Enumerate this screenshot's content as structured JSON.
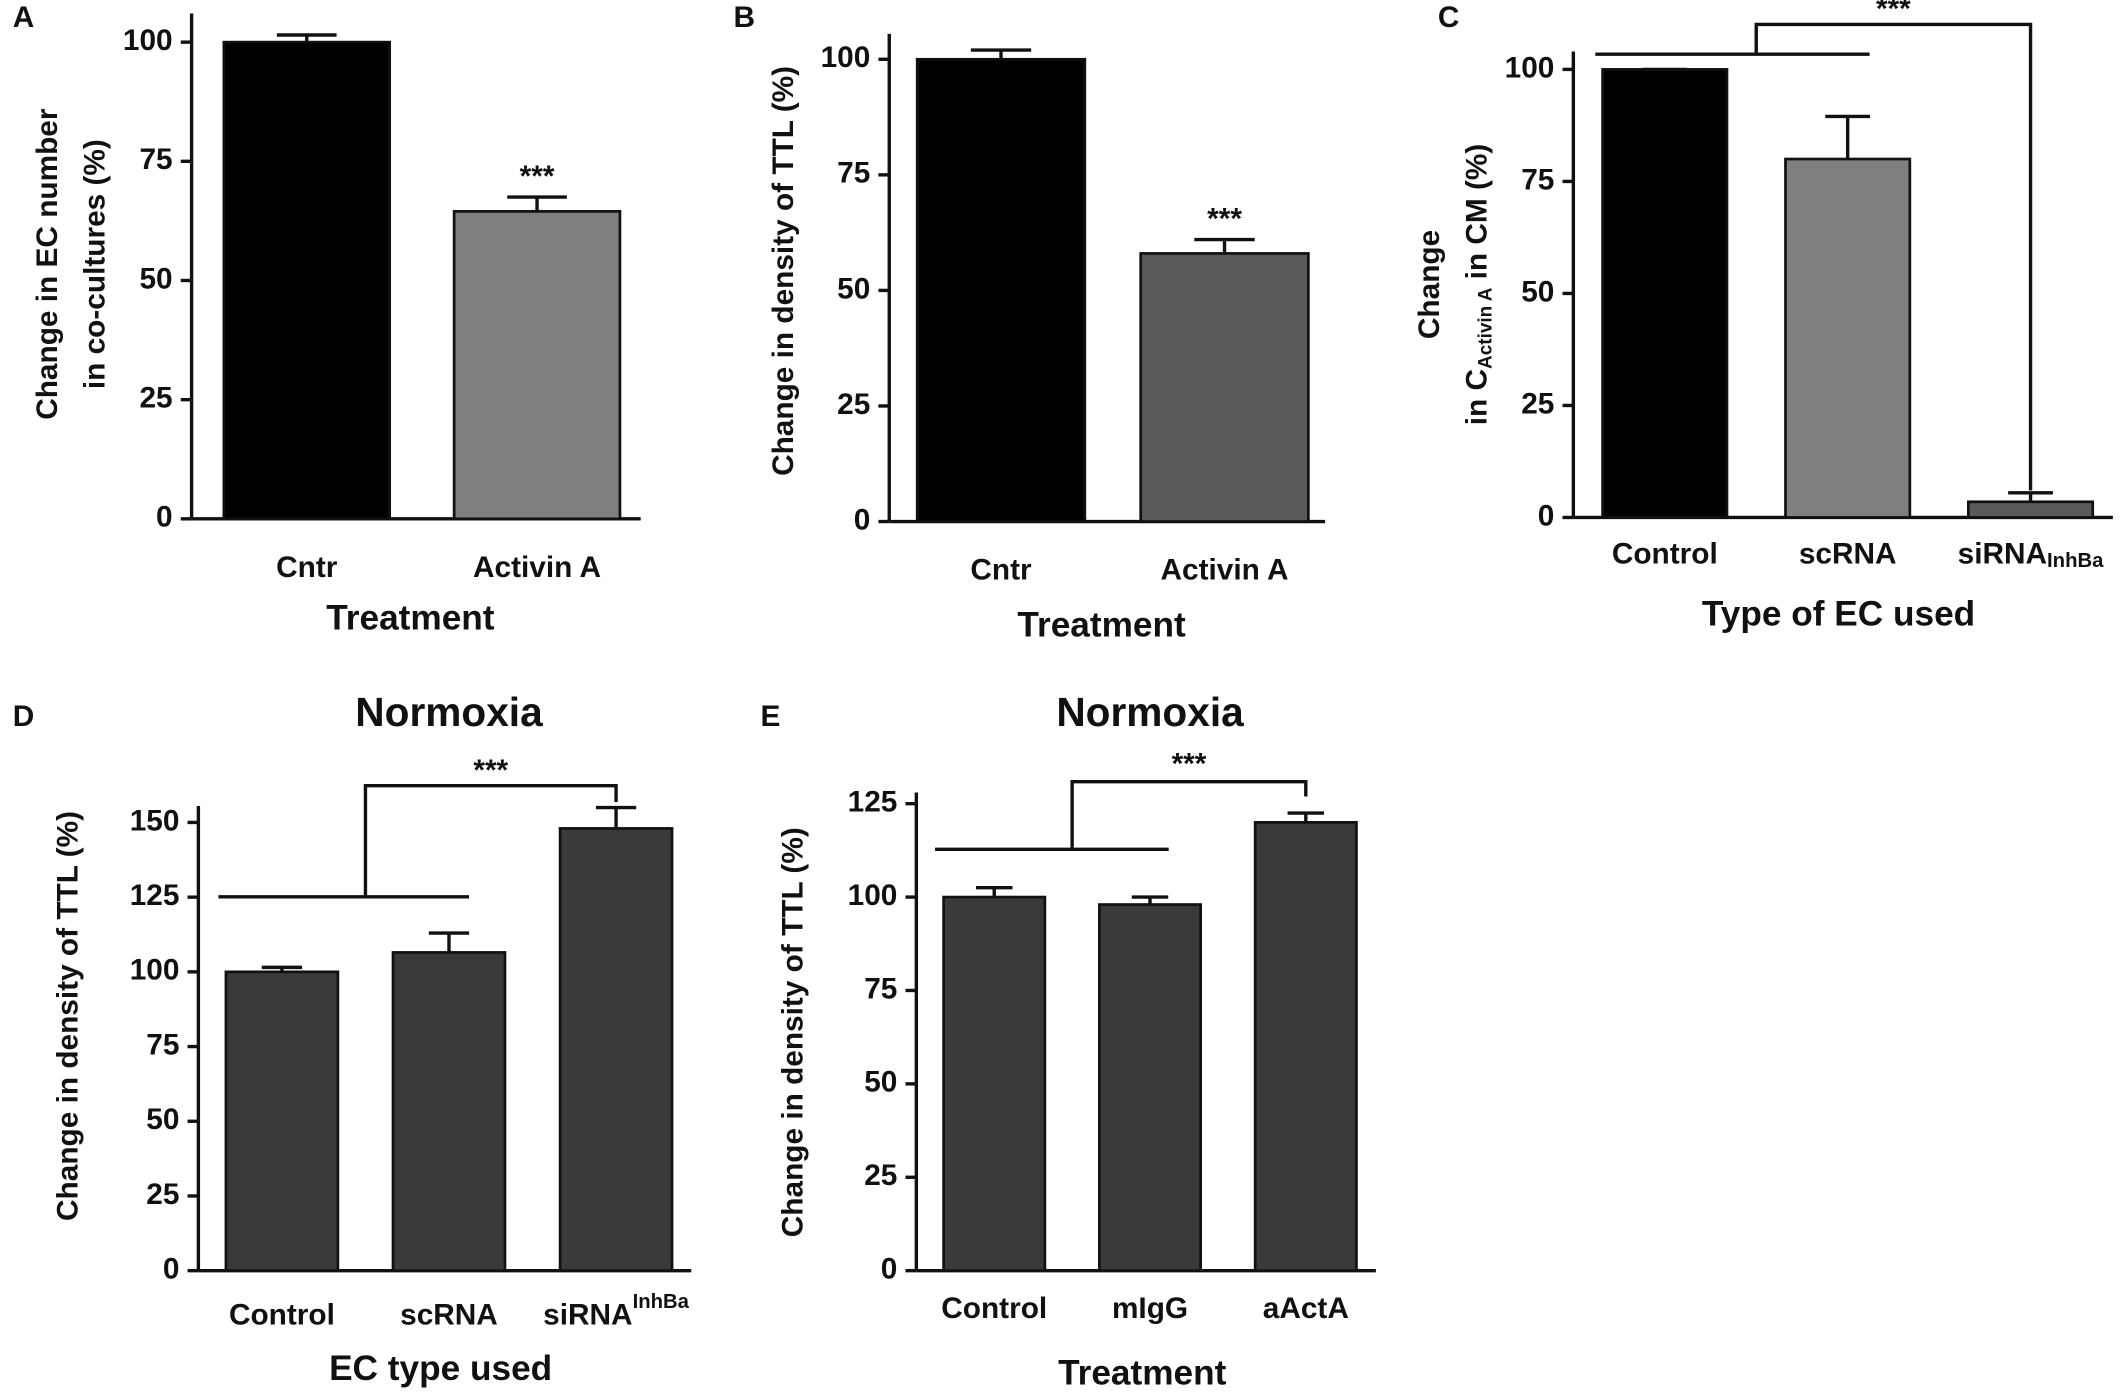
{
  "chart_data": [
    {
      "type": "bar",
      "panel": "A",
      "categories": [
        "Cntr",
        "Activin A"
      ],
      "values": [
        100,
        64.5
      ],
      "errors": [
        1.5,
        3
      ],
      "colors": [
        "#000000",
        "#7f7f7f"
      ],
      "ylabel": [
        "Change in EC number",
        "in co-cultures (%)"
      ],
      "xlabel": "Treatment",
      "ylim": [
        0,
        106
      ],
      "yticks": [
        0,
        25,
        50,
        75,
        100
      ],
      "significance": "***",
      "significance_target": 1
    },
    {
      "type": "bar",
      "panel": "B",
      "categories": [
        "Cntr",
        "Activin A"
      ],
      "values": [
        100,
        58
      ],
      "errors": [
        2,
        3
      ],
      "colors": [
        "#000000",
        "#595959"
      ],
      "ylabel": [
        "Change in density of TTL (%)"
      ],
      "xlabel": "Treatment",
      "ylim": [
        0,
        105.5
      ],
      "yticks": [
        0,
        25,
        50,
        75,
        100
      ],
      "significance": "***",
      "significance_target": 1
    },
    {
      "type": "bar",
      "panel": "C",
      "categories": [
        "Control",
        "scRNA",
        "siRNA"
      ],
      "category_sub": [
        null,
        null,
        "InhBa"
      ],
      "values": [
        100,
        80,
        3.5
      ],
      "errors": [
        0,
        9.5,
        2
      ],
      "colors": [
        "#000000",
        "#7f7f7f",
        "#595959"
      ],
      "ylabel": [
        "Change",
        {
          "text": "in C",
          "sub": "Activin A",
          "tail": "in CM (%)"
        }
      ],
      "xlabel": "Type of EC used",
      "ylim": [
        0,
        104
      ],
      "yticks": [
        0,
        25,
        50,
        75,
        100
      ],
      "significance": "***",
      "significance_group": [
        0,
        1
      ],
      "significance_target": 2
    },
    {
      "type": "bar",
      "panel": "D",
      "title": "Normoxia",
      "categories": [
        "Control",
        "scRNA",
        "siRNA"
      ],
      "category_sup": [
        null,
        null,
        "InhBa"
      ],
      "values": [
        100,
        106.5,
        148
      ],
      "errors": [
        1.5,
        6.5,
        7
      ],
      "colors": [
        "#3a3a3a",
        "#3a3a3a",
        "#3a3a3a"
      ],
      "ylabel": [
        "Change in density of TTL (%)"
      ],
      "xlabel": "EC type used",
      "ylim": [
        0,
        155.5
      ],
      "yticks": [
        0,
        25,
        50,
        75,
        100,
        125,
        150
      ],
      "significance": "***",
      "significance_group": [
        0,
        1
      ],
      "significance_target": 2
    },
    {
      "type": "bar",
      "panel": "E",
      "title": "Normoxia",
      "categories": [
        "Control",
        "mIgG",
        "aActA"
      ],
      "values": [
        100,
        98,
        120
      ],
      "errors": [
        2.5,
        2,
        2.5
      ],
      "colors": [
        "#3a3a3a",
        "#3a3a3a",
        "#3a3a3a"
      ],
      "ylabel": [
        "Change in density of TTL (%)"
      ],
      "xlabel": "Treatment",
      "ylim": [
        0,
        128
      ],
      "yticks": [
        0,
        25,
        50,
        75,
        100,
        125
      ],
      "significance": "***",
      "significance_group": [
        0,
        1
      ],
      "significance_target": 2
    }
  ]
}
